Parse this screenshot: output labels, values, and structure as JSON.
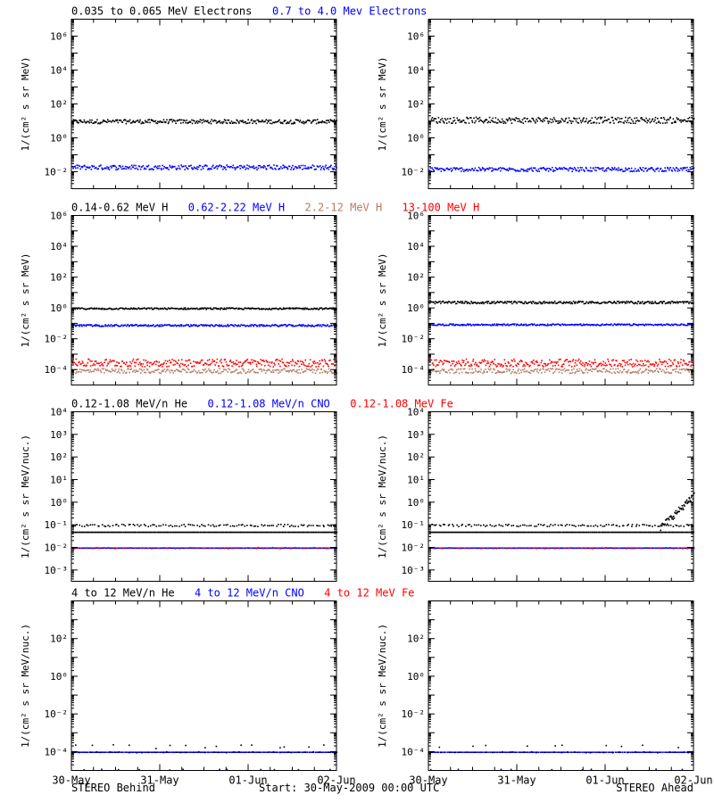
{
  "colors": {
    "black": "#000000",
    "blue": "#0000ff",
    "tan": "#b87a62",
    "red": "#ff0000"
  },
  "footer": {
    "left": "STEREO Behind",
    "center": "Start: 30-May-2009 00:00 UTC",
    "right": "STEREO Ahead"
  },
  "chart_data": [
    {
      "type": "scatter",
      "row": 0,
      "col": 0,
      "ylabel": "1/(cm^2 s sr MeV)",
      "ylim_log10": [
        -3,
        7
      ],
      "yticks_log10": [
        -2,
        0,
        2,
        4,
        6
      ],
      "xticks": [],
      "x_range_days": [
        0,
        3
      ],
      "title_segments": [
        {
          "text": "0.035 to 0.065 MeV Electrons",
          "color": "black"
        },
        {
          "text": "0.7 to 4.0 Mev Electrons",
          "color": "blue"
        }
      ],
      "series": [
        {
          "color": "black",
          "level": 10,
          "scatter": 0.12,
          "points": 300
        },
        {
          "color": "blue",
          "level": 0.02,
          "scatter": 0.14,
          "points": 300
        }
      ]
    },
    {
      "type": "scatter",
      "row": 0,
      "col": 1,
      "ylabel": "1/(cm^2 s sr MeV)",
      "ylim_log10": [
        -3,
        7
      ],
      "yticks_log10": [
        -2,
        0,
        2,
        4,
        6
      ],
      "xticks": [],
      "x_range_days": [
        0,
        3
      ],
      "title_segments": [],
      "series": [
        {
          "color": "black",
          "level": 12,
          "scatter": 0.18,
          "points": 300
        },
        {
          "color": "blue",
          "level": 0.015,
          "scatter": 0.12,
          "points": 300
        }
      ]
    },
    {
      "type": "scatter",
      "row": 1,
      "col": 0,
      "ylabel": "1/(cm^2 s sr MeV)",
      "ylim_log10": [
        -5,
        6
      ],
      "yticks_log10": [
        -4,
        -2,
        0,
        2,
        4,
        6
      ],
      "xticks": [],
      "x_range_days": [
        0,
        3
      ],
      "title_segments": [
        {
          "text": "0.14-0.62 MeV H",
          "color": "black"
        },
        {
          "text": "0.62-2.22 MeV H",
          "color": "blue"
        },
        {
          "text": "2.2-12 MeV H",
          "color": "tan"
        },
        {
          "text": "13-100 MeV H",
          "color": "red"
        }
      ],
      "series": [
        {
          "color": "black",
          "level": 1,
          "scatter": 0.05,
          "points": 300
        },
        {
          "color": "blue",
          "level": 0.08,
          "scatter": 0.06,
          "points": 300
        },
        {
          "color": "tan",
          "level": 9e-05,
          "scatter": 0.15,
          "points": 250
        },
        {
          "color": "red",
          "level": 0.0003,
          "scatter": 0.25,
          "points": 300
        }
      ]
    },
    {
      "type": "scatter",
      "row": 1,
      "col": 1,
      "ylabel": "1/(cm^2 s sr MeV)",
      "ylim_log10": [
        -5,
        6
      ],
      "yticks_log10": [
        -4,
        -2,
        0,
        2,
        4,
        6
      ],
      "xticks": [],
      "x_range_days": [
        0,
        3
      ],
      "title_segments": [],
      "series": [
        {
          "color": "black",
          "level": 2.5,
          "scatter": 0.08,
          "points": 300
        },
        {
          "color": "blue",
          "level": 0.09,
          "scatter": 0.05,
          "points": 300
        },
        {
          "color": "tan",
          "level": 9e-05,
          "scatter": 0.15,
          "points": 250
        },
        {
          "color": "red",
          "level": 0.0003,
          "scatter": 0.25,
          "points": 300
        }
      ]
    },
    {
      "type": "scatter",
      "row": 2,
      "col": 0,
      "ylabel": "1/(cm^2 s sr MeV/nuc.)",
      "ylim_log10": [
        -3.5,
        4
      ],
      "yticks_log10": [
        -3,
        -2,
        -1,
        0,
        1,
        2,
        3,
        4
      ],
      "xticks": [],
      "x_range_days": [
        0,
        3
      ],
      "title_segments": [
        {
          "text": "0.12-1.08 MeV/n He",
          "color": "black"
        },
        {
          "text": "0.12-1.08 MeV/n CNO",
          "color": "blue"
        },
        {
          "text": "0.12-1.08 MeV Fe",
          "color": "red"
        }
      ],
      "series": [
        {
          "color": "black",
          "level": 0.05,
          "scatter": 0.0,
          "points": 300
        },
        {
          "color": "black",
          "level": 0.1,
          "scatter": 0.05,
          "points": 120
        },
        {
          "color": "blue",
          "level": 0.01,
          "scatter": 0.0,
          "points": 300
        },
        {
          "color": "red",
          "level": 0.01,
          "scatter": 0.0,
          "points": 60
        }
      ]
    },
    {
      "type": "scatter",
      "row": 2,
      "col": 1,
      "ylabel": "1/(cm^2 s sr MeV/nuc.)",
      "ylim_log10": [
        -3.5,
        4
      ],
      "yticks_log10": [
        -3,
        -2,
        -1,
        0,
        1,
        2,
        3,
        4
      ],
      "xticks": [],
      "x_range_days": [
        0,
        3
      ],
      "title_segments": [],
      "series": [
        {
          "color": "black",
          "level": 0.05,
          "scatter": 0.0,
          "points": 300
        },
        {
          "color": "black",
          "level": 0.1,
          "scatter": 0.05,
          "points": 120
        },
        {
          "color": "blue",
          "level": 0.01,
          "scatter": 0.0,
          "points": 300
        },
        {
          "color": "red",
          "level": 0.01,
          "scatter": 0.0,
          "points": 60
        }
      ],
      "rise": {
        "start_day": 2.62,
        "end_day": 3.0,
        "from": 0.08,
        "to": 2.0
      }
    },
    {
      "type": "scatter",
      "row": 3,
      "col": 0,
      "ylabel": "1/(cm^2 s sr MeV/nuc.)",
      "ylim_log10": [
        -5,
        4
      ],
      "yticks_log10": [
        -4,
        -2,
        0,
        2
      ],
      "xticks": [
        "30-May",
        "31-May",
        "01-Jun",
        "02-Jun"
      ],
      "x_range_days": [
        0,
        3
      ],
      "title_segments": [
        {
          "text": "4 to 12 MeV/n He",
          "color": "black"
        },
        {
          "text": "4 to 12 MeV/n CNO",
          "color": "blue"
        },
        {
          "text": "4 to 12 MeV Fe",
          "color": "red"
        }
      ],
      "series": [
        {
          "color": "blue",
          "level": 0.0001,
          "scatter": 0.0,
          "points": 250
        },
        {
          "color": "black",
          "level": 0.0001,
          "scatter": 0.0,
          "points": 40
        },
        {
          "color": "black",
          "level": 0.0002,
          "scatter": 0.1,
          "points": 15
        },
        {
          "color": "blue",
          "level": 1.2e-05,
          "scatter": 0.0,
          "points": 12
        }
      ]
    },
    {
      "type": "scatter",
      "row": 3,
      "col": 1,
      "ylabel": "1/(cm^2 s sr MeV/nuc.)",
      "ylim_log10": [
        -5,
        4
      ],
      "yticks_log10": [
        -4,
        -2,
        0,
        2
      ],
      "xticks": [
        "30-May",
        "31-May",
        "01-Jun",
        "02-Jun"
      ],
      "x_range_days": [
        0,
        3
      ],
      "title_segments": [],
      "series": [
        {
          "color": "blue",
          "level": 0.0001,
          "scatter": 0.0,
          "points": 230
        },
        {
          "color": "black",
          "level": 0.0001,
          "scatter": 0.0,
          "points": 35
        },
        {
          "color": "black",
          "level": 0.0002,
          "scatter": 0.1,
          "points": 10
        },
        {
          "color": "blue",
          "level": 1.2e-05,
          "scatter": 0.0,
          "points": 10
        }
      ]
    }
  ]
}
